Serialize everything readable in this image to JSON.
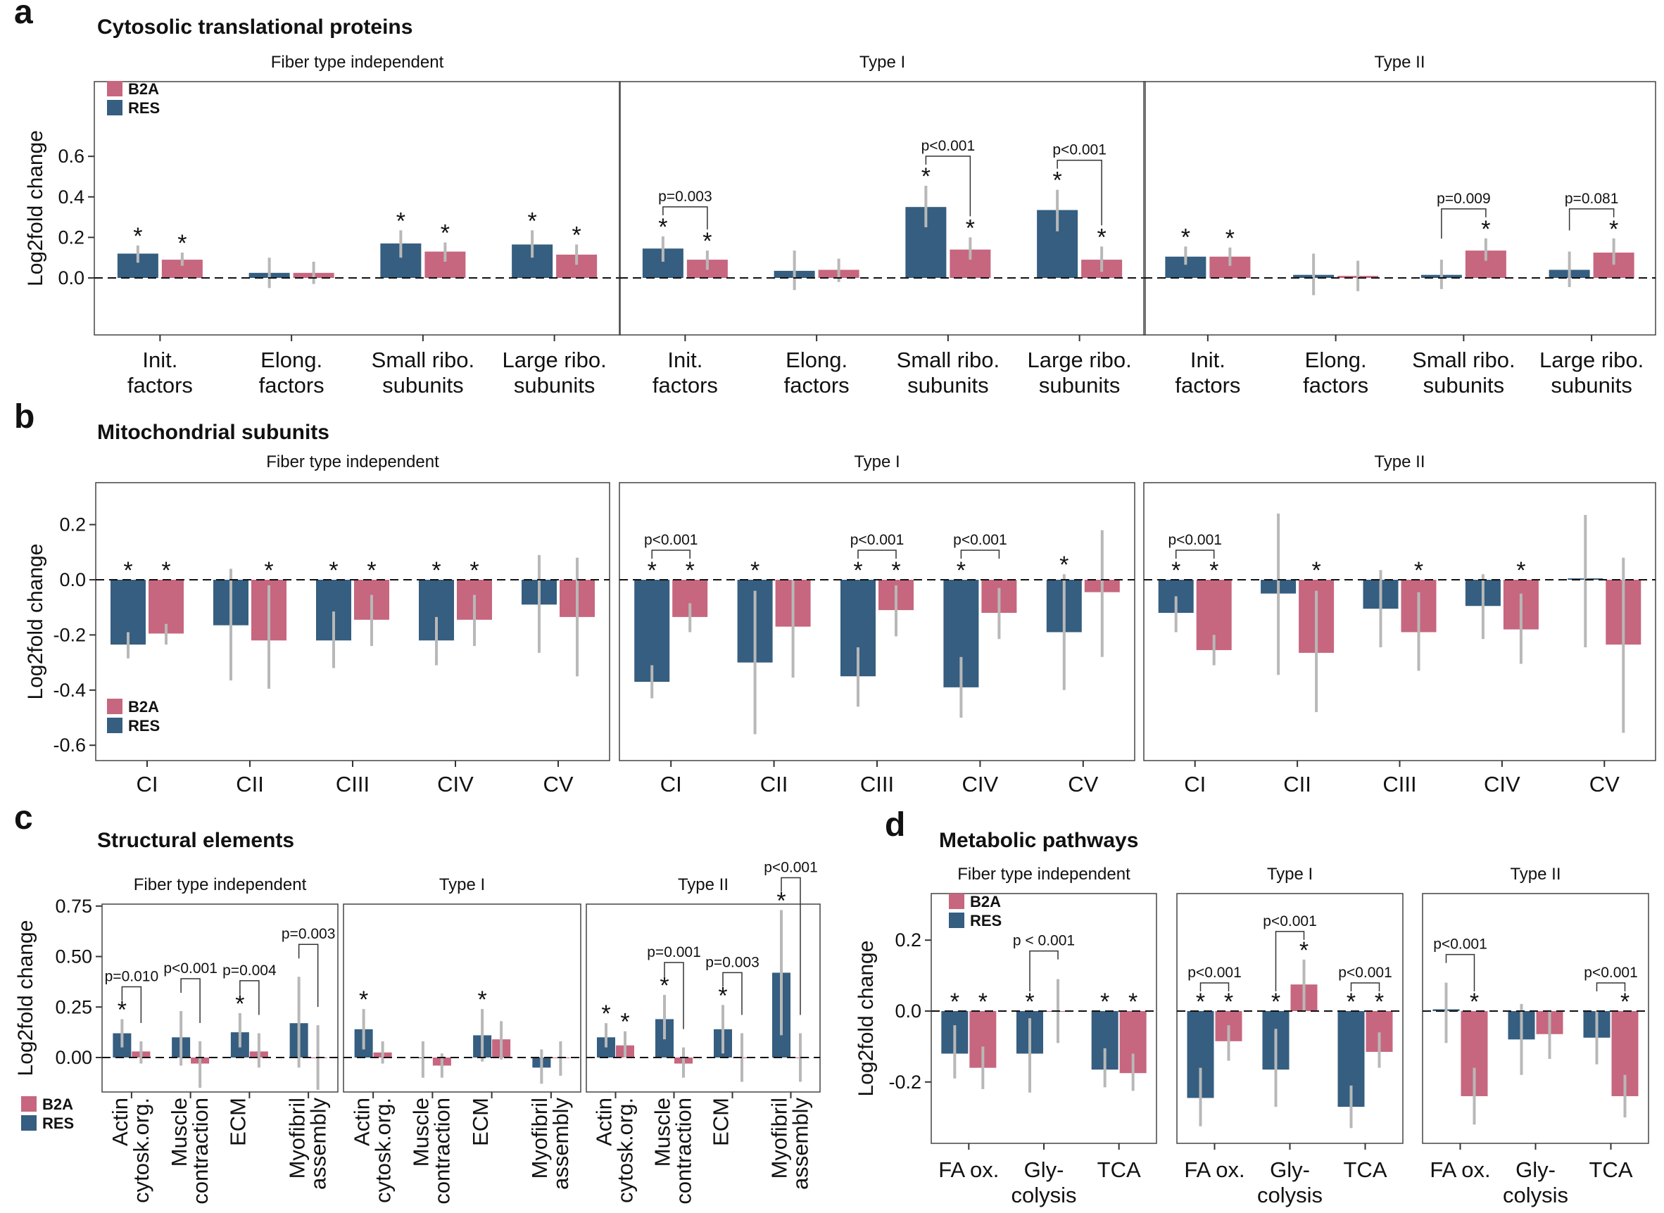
{
  "colors": {
    "B2A": "#c7667f",
    "RES": "#355e80",
    "err": "#b8b8b8"
  },
  "legend": [
    "B2A",
    "RES"
  ],
  "panels": [
    {
      "letter": "a",
      "title": "Cytosolic translational proteins",
      "ylabel": "Log2fold change",
      "yticks": [
        "0.6",
        "0.4",
        "0.2",
        "0.0"
      ],
      "facets": [
        "Fiber type independent",
        "Type I",
        "Type II"
      ],
      "categories": [
        "Init.\nfactors",
        "Elong.\nfactors",
        "Small ribo.\nsubunits",
        "Large ribo.\nsubunits"
      ],
      "pvalues": [
        [
          "",
          "",
          "",
          ""
        ],
        [
          "p=0.003",
          "",
          "p<0.001",
          "p<0.001"
        ],
        [
          "",
          "",
          "p=0.009",
          "p=0.081"
        ]
      ]
    },
    {
      "letter": "b",
      "title": "Mitochondrial subunits",
      "ylabel": "Log2fold change",
      "yticks": [
        "0.2",
        "0.0",
        "-0.2",
        "-0.4",
        "-0.6"
      ],
      "facets": [
        "Fiber type independent",
        "Type I",
        "Type II"
      ],
      "categories": [
        "CI",
        "CII",
        "CIII",
        "CIV",
        "CV"
      ],
      "pvalues": [
        [
          "",
          "",
          "",
          "",
          ""
        ],
        [
          "p<0.001",
          "",
          "p<0.001",
          "p<0.001",
          ""
        ],
        [
          "p<0.001",
          "",
          "",
          "",
          ""
        ]
      ]
    },
    {
      "letter": "c",
      "title": "Structural elements",
      "ylabel": "Log2fold change",
      "yticks": [
        "0.75",
        "0.50",
        "0.25",
        "0.00"
      ],
      "facets": [
        "Fiber type independent",
        "Type I",
        "Type II"
      ],
      "categories": [
        "Actin\ncytosk.org.",
        "Muscle\ncontraction",
        "ECM",
        "Myofibril\nassembly"
      ],
      "pvalues": [
        [
          "p=0.010",
          "p<0.001",
          "p=0.004",
          "p=0.003"
        ],
        [
          "",
          "",
          "",
          ""
        ],
        [
          "",
          "p=0.001",
          "p=0.003",
          "p<0.001"
        ]
      ]
    },
    {
      "letter": "d",
      "title": "Metabolic pathways",
      "ylabel": "Log2fold change",
      "yticks": [
        "0.2",
        "0.0",
        "-0.2"
      ],
      "facets": [
        "Fiber type independent",
        "Type I",
        "Type II"
      ],
      "categories": [
        "FA ox.",
        "Gly-\ncolysis",
        "TCA"
      ],
      "pvalues": [
        [
          "",
          "p < 0.001",
          ""
        ],
        [
          "p<0.001",
          "p<0.001",
          "p<0.001"
        ],
        [
          "p<0.001",
          "",
          "p<0.001"
        ]
      ]
    }
  ],
  "chart_data": [
    {
      "type": "bar",
      "title": "Cytosolic translational proteins",
      "ylabel": "Log2fold change",
      "ylim": [
        -0.18,
        0.62
      ],
      "categories": [
        "Init. factors",
        "Elong. factors",
        "Small ribo. subunits",
        "Large ribo. subunits"
      ],
      "facets": [
        {
          "name": "Fiber type independent",
          "series": [
            {
              "name": "RES",
              "values": [
                0.12,
                0.025,
                0.17,
                0.165
              ],
              "lo": [
                0.075,
                -0.05,
                0.1,
                0.1
              ],
              "hi": [
                0.16,
                0.1,
                0.235,
                0.235
              ],
              "sig": [
                true,
                false,
                true,
                true
              ]
            },
            {
              "name": "B2A",
              "values": [
                0.09,
                0.025,
                0.13,
                0.115
              ],
              "lo": [
                0.06,
                -0.03,
                0.08,
                0.065
              ],
              "hi": [
                0.125,
                0.08,
                0.175,
                0.165
              ],
              "sig": [
                true,
                false,
                true,
                true
              ]
            }
          ]
        },
        {
          "name": "Type I",
          "series": [
            {
              "name": "RES",
              "values": [
                0.145,
                0.035,
                0.35,
                0.335
              ],
              "lo": [
                0.08,
                -0.06,
                0.25,
                0.23
              ],
              "hi": [
                0.205,
                0.135,
                0.455,
                0.435
              ],
              "sig": [
                true,
                false,
                true,
                true
              ]
            },
            {
              "name": "B2A",
              "values": [
                0.09,
                0.04,
                0.14,
                0.09
              ],
              "lo": [
                0.04,
                -0.02,
                0.09,
                0.03
              ],
              "hi": [
                0.135,
                0.095,
                0.2,
                0.155
              ],
              "sig": [
                true,
                false,
                true,
                true
              ]
            }
          ]
        },
        {
          "name": "Type II",
          "series": [
            {
              "name": "RES",
              "values": [
                0.105,
                0.015,
                0.015,
                0.04
              ],
              "lo": [
                0.065,
                -0.085,
                -0.055,
                -0.045
              ],
              "hi": [
                0.155,
                0.12,
                0.09,
                0.13
              ],
              "sig": [
                true,
                false,
                false,
                false
              ]
            },
            {
              "name": "B2A",
              "values": [
                0.105,
                0.01,
                0.135,
                0.125
              ],
              "lo": [
                0.06,
                -0.065,
                0.085,
                0.065
              ],
              "hi": [
                0.15,
                0.085,
                0.195,
                0.195
              ],
              "sig": [
                true,
                false,
                true,
                true
              ]
            }
          ]
        }
      ]
    },
    {
      "type": "bar",
      "title": "Mitochondrial subunits",
      "ylabel": "Log2fold change",
      "ylim": [
        -0.65,
        0.34
      ],
      "categories": [
        "CI",
        "CII",
        "CIII",
        "CIV",
        "CV"
      ],
      "facets": [
        {
          "name": "Fiber type independent",
          "series": [
            {
              "name": "RES",
              "values": [
                -0.235,
                -0.165,
                -0.22,
                -0.22,
                -0.09
              ],
              "lo": [
                -0.285,
                -0.365,
                -0.32,
                -0.31,
                -0.265
              ],
              "hi": [
                -0.19,
                0.04,
                -0.115,
                -0.135,
                0.09
              ],
              "sig": [
                true,
                false,
                true,
                true,
                false
              ]
            },
            {
              "name": "B2A",
              "values": [
                -0.195,
                -0.22,
                -0.145,
                -0.145,
                -0.135
              ],
              "lo": [
                -0.235,
                -0.395,
                -0.24,
                -0.24,
                -0.35
              ],
              "hi": [
                -0.16,
                -0.02,
                -0.055,
                -0.055,
                0.08
              ],
              "sig": [
                true,
                true,
                true,
                true,
                false
              ]
            }
          ]
        },
        {
          "name": "Type I",
          "series": [
            {
              "name": "RES",
              "values": [
                -0.37,
                -0.3,
                -0.35,
                -0.39,
                -0.19
              ],
              "lo": [
                -0.43,
                -0.56,
                -0.46,
                -0.5,
                -0.4
              ],
              "hi": [
                -0.31,
                -0.04,
                -0.245,
                -0.28,
                0.02
              ],
              "sig": [
                true,
                true,
                true,
                true,
                true
              ]
            },
            {
              "name": "B2A",
              "values": [
                -0.135,
                -0.17,
                -0.11,
                -0.12,
                -0.045
              ],
              "lo": [
                -0.19,
                -0.355,
                -0.205,
                -0.215,
                -0.28
              ],
              "hi": [
                -0.085,
                0.0,
                -0.02,
                -0.03,
                0.18
              ],
              "sig": [
                true,
                false,
                true,
                false,
                false
              ]
            }
          ]
        },
        {
          "name": "Type II",
          "series": [
            {
              "name": "RES",
              "values": [
                -0.12,
                -0.05,
                -0.105,
                -0.095,
                0.005
              ],
              "lo": [
                -0.19,
                -0.345,
                -0.245,
                -0.215,
                -0.245
              ],
              "hi": [
                -0.06,
                0.24,
                0.035,
                0.02,
                0.235
              ],
              "sig": [
                true,
                false,
                false,
                false,
                false
              ]
            },
            {
              "name": "B2A",
              "values": [
                -0.255,
                -0.265,
                -0.19,
                -0.18,
                -0.235
              ],
              "lo": [
                -0.31,
                -0.48,
                -0.33,
                -0.305,
                -0.555
              ],
              "hi": [
                -0.2,
                -0.04,
                -0.045,
                -0.05,
                0.08
              ],
              "sig": [
                true,
                true,
                true,
                true,
                false
              ]
            }
          ]
        }
      ]
    },
    {
      "type": "bar",
      "title": "Structural elements",
      "ylabel": "Log2fold change",
      "ylim": [
        -0.17,
        0.76
      ],
      "categories": [
        "Actin cytosk.org.",
        "Muscle contraction",
        "ECM",
        "Myofibril assembly"
      ],
      "facets": [
        {
          "name": "Fiber type independent",
          "series": [
            {
              "name": "RES",
              "values": [
                0.12,
                0.1,
                0.125,
                0.17
              ],
              "lo": [
                0.05,
                -0.04,
                0.05,
                -0.05
              ],
              "hi": [
                0.19,
                0.23,
                0.22,
                0.4
              ],
              "sig": [
                true,
                false,
                true,
                false
              ]
            },
            {
              "name": "B2A",
              "values": [
                0.03,
                -0.03,
                0.03,
                0.0
              ],
              "lo": [
                -0.03,
                -0.15,
                -0.05,
                -0.16
              ],
              "hi": [
                0.08,
                0.08,
                0.12,
                0.16
              ],
              "sig": [
                false,
                false,
                false,
                false
              ]
            }
          ]
        },
        {
          "name": "Type I",
          "series": [
            {
              "name": "RES",
              "values": [
                0.14,
                0.0,
                0.11,
                -0.05
              ],
              "lo": [
                0.04,
                -0.1,
                -0.02,
                -0.13
              ],
              "hi": [
                0.24,
                0.08,
                0.24,
                0.04
              ],
              "sig": [
                true,
                false,
                true,
                false
              ]
            },
            {
              "name": "B2A",
              "values": [
                0.025,
                -0.04,
                0.09,
                0.0
              ],
              "lo": [
                -0.03,
                -0.1,
                -0.01,
                -0.09
              ],
              "hi": [
                0.08,
                0.02,
                0.18,
                0.08
              ],
              "sig": [
                false,
                false,
                false,
                false
              ]
            }
          ]
        },
        {
          "name": "Type II",
          "series": [
            {
              "name": "RES",
              "values": [
                0.1,
                0.19,
                0.14,
                0.42
              ],
              "lo": [
                0.05,
                0.09,
                0.02,
                0.11
              ],
              "hi": [
                0.17,
                0.31,
                0.26,
                0.73
              ],
              "sig": [
                true,
                true,
                true,
                true
              ]
            },
            {
              "name": "B2A",
              "values": [
                0.06,
                -0.03,
                0.0,
                0.0
              ],
              "lo": [
                0.0,
                -0.1,
                -0.12,
                -0.12
              ],
              "hi": [
                0.13,
                0.05,
                0.12,
                0.12
              ],
              "sig": [
                true,
                false,
                false,
                false
              ]
            }
          ]
        }
      ]
    },
    {
      "type": "bar",
      "title": "Metabolic pathways",
      "ylabel": "Log2fold change",
      "ylim": [
        -0.37,
        0.33
      ],
      "categories": [
        "FA ox.",
        "Glycolysis",
        "TCA"
      ],
      "facets": [
        {
          "name": "Fiber type independent",
          "series": [
            {
              "name": "RES",
              "values": [
                -0.12,
                -0.12,
                -0.165
              ],
              "lo": [
                -0.19,
                -0.23,
                -0.215
              ],
              "hi": [
                -0.04,
                -0.02,
                -0.105
              ],
              "sig": [
                true,
                true,
                true
              ]
            },
            {
              "name": "B2A",
              "values": [
                -0.16,
                0.0,
                -0.175
              ],
              "lo": [
                -0.22,
                -0.09,
                -0.225
              ],
              "hi": [
                -0.1,
                0.09,
                -0.12
              ],
              "sig": [
                true,
                false,
                true
              ]
            }
          ]
        },
        {
          "name": "Type I",
          "series": [
            {
              "name": "RES",
              "values": [
                -0.245,
                -0.165,
                -0.27
              ],
              "lo": [
                -0.325,
                -0.27,
                -0.33
              ],
              "hi": [
                -0.16,
                -0.05,
                -0.21
              ],
              "sig": [
                true,
                true,
                true
              ]
            },
            {
              "name": "B2A",
              "values": [
                -0.085,
                0.075,
                -0.115
              ],
              "lo": [
                -0.14,
                0.0,
                -0.16
              ],
              "hi": [
                -0.04,
                0.145,
                -0.06
              ],
              "sig": [
                true,
                true,
                true
              ]
            }
          ]
        },
        {
          "name": "Type II",
          "series": [
            {
              "name": "RES",
              "values": [
                0.005,
                -0.08,
                -0.075
              ],
              "lo": [
                -0.09,
                -0.18,
                -0.15
              ],
              "hi": [
                0.08,
                0.02,
                0.0
              ],
              "sig": [
                false,
                false,
                false
              ]
            },
            {
              "name": "B2A",
              "values": [
                -0.24,
                -0.065,
                -0.24
              ],
              "lo": [
                -0.32,
                -0.135,
                -0.3
              ],
              "hi": [
                -0.16,
                0.0,
                -0.18
              ],
              "sig": [
                true,
                false,
                true
              ]
            }
          ]
        }
      ]
    }
  ]
}
